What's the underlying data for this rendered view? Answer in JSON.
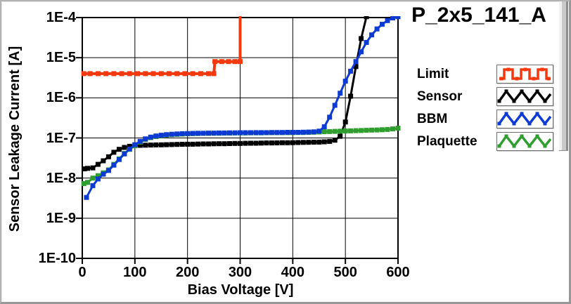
{
  "header": {
    "title": "P_2x5_141_A"
  },
  "chart": {
    "ylabel": "Sensor Leakage Current [A]",
    "xlabel": "Bias Voltage [V]",
    "y_tick_labels": [
      "1E-4",
      "1E-5",
      "1E-6",
      "1E-7",
      "1E-8",
      "1E-9",
      "1E-10"
    ],
    "x_tick_labels": [
      "0",
      "100",
      "200",
      "300",
      "400",
      "500",
      "600"
    ]
  },
  "legend": {
    "items": [
      {
        "label": "Limit",
        "color": "#f5380e",
        "wave": "square",
        "icon": "square-wave-icon"
      },
      {
        "label": "Sensor",
        "color": "#000000",
        "wave": "triangle",
        "icon": "triangle-wave-icon"
      },
      {
        "label": "BBM",
        "color": "#0c3ad2",
        "wave": "triangle",
        "icon": "triangle-wave-icon"
      },
      {
        "label": "Plaquette",
        "color": "#2f9e2f",
        "wave": "triangle",
        "icon": "triangle-wave-icon"
      }
    ]
  },
  "colors": {
    "grid": "#000000",
    "frame": "#000000",
    "plot_bg": "#ffffff",
    "panel_bg": "#ffffff",
    "border": "#989898"
  },
  "chart_data": {
    "type": "line",
    "title": "P_2x5_141_A",
    "xlabel": "Bias Voltage [V]",
    "ylabel": "Sensor Leakage Current [A]",
    "grid": true,
    "legend_position": "right",
    "x_axis": {
      "min": 0,
      "max": 600,
      "ticks": [
        0,
        100,
        200,
        300,
        400,
        500,
        600
      ]
    },
    "y_axis": {
      "scale": "log",
      "min": 1e-10,
      "max": 0.0001,
      "tick_values": [
        0.0001,
        1e-05,
        1e-06,
        1e-07,
        1e-08,
        1e-09,
        1e-10
      ]
    },
    "series": [
      {
        "name": "Sensor",
        "color": "#000000",
        "marker": "square",
        "x": [
          4,
          10,
          20,
          30,
          40,
          50,
          60,
          70,
          80,
          90,
          100,
          110,
          120,
          130,
          140,
          150,
          160,
          170,
          180,
          190,
          200,
          210,
          220,
          230,
          240,
          250,
          260,
          270,
          280,
          290,
          300,
          310,
          320,
          330,
          340,
          350,
          360,
          370,
          380,
          390,
          400,
          410,
          420,
          430,
          440,
          450,
          460,
          470,
          480,
          490,
          500,
          510,
          520,
          530,
          540
        ],
        "y": [
          1.7e-08,
          1.75e-08,
          1.8e-08,
          2.2e-08,
          2.7e-08,
          3.4e-08,
          4.4e-08,
          5.2e-08,
          5.8e-08,
          6.2e-08,
          6.5e-08,
          6.55e-08,
          6.6e-08,
          6.65e-08,
          6.7e-08,
          6.75e-08,
          6.8e-08,
          6.85e-08,
          6.9e-08,
          6.95e-08,
          7e-08,
          7e-08,
          7.05e-08,
          7.1e-08,
          7.1e-08,
          7.15e-08,
          7.2e-08,
          7.2e-08,
          7.25e-08,
          7.3e-08,
          7.3e-08,
          7.35e-08,
          7.4e-08,
          7.4e-08,
          7.45e-08,
          7.5e-08,
          7.5e-08,
          7.55e-08,
          7.6e-08,
          7.6e-08,
          7.65e-08,
          7.7e-08,
          7.75e-08,
          7.8e-08,
          7.85e-08,
          7.9e-08,
          8e-08,
          8.2e-08,
          8.8e-08,
          1.1e-07,
          2.5e-07,
          1.1e-06,
          6e-06,
          3e-05,
          0.000105
        ]
      },
      {
        "name": "Plaquette",
        "color": "#2f9e2f",
        "marker": "square",
        "x": [
          3,
          10,
          20,
          30,
          40,
          50,
          60,
          70,
          80,
          90,
          100,
          110,
          120,
          130,
          140,
          150,
          160,
          170,
          180,
          190,
          200,
          210,
          220,
          230,
          240,
          250,
          260,
          270,
          280,
          290,
          300,
          310,
          320,
          330,
          340,
          350,
          360,
          370,
          380,
          390,
          400,
          410,
          420,
          430,
          440,
          450,
          460,
          470,
          480,
          490,
          500,
          510,
          520,
          530,
          540,
          550,
          560,
          570,
          580,
          590,
          600
        ],
        "y": [
          7.3e-09,
          7.8e-09,
          1e-08,
          1.15e-08,
          1.35e-08,
          1.6e-08,
          2.2e-08,
          3e-08,
          4.1e-08,
          5.2e-08,
          6.4e-08,
          7.9e-08,
          9.2e-08,
          1.02e-07,
          1.09e-07,
          1.14e-07,
          1.18e-07,
          1.21e-07,
          1.23e-07,
          1.25e-07,
          1.27e-07,
          1.28e-07,
          1.29e-07,
          1.3e-07,
          1.3e-07,
          1.31e-07,
          1.31e-07,
          1.32e-07,
          1.32e-07,
          1.33e-07,
          1.33e-07,
          1.33e-07,
          1.34e-07,
          1.34e-07,
          1.34e-07,
          1.35e-07,
          1.35e-07,
          1.35e-07,
          1.36e-07,
          1.36e-07,
          1.36e-07,
          1.37e-07,
          1.37e-07,
          1.38e-07,
          1.39e-07,
          1.41e-07,
          1.43e-07,
          1.44e-07,
          1.46e-07,
          1.47e-07,
          1.49e-07,
          1.5e-07,
          1.52e-07,
          1.53e-07,
          1.55e-07,
          1.57e-07,
          1.58e-07,
          1.6e-07,
          1.63e-07,
          1.68e-07,
          1.75e-07
        ]
      },
      {
        "name": "BBM",
        "color": "#0c3ad2",
        "marker": "square",
        "x": [
          8,
          20,
          30,
          40,
          50,
          60,
          70,
          80,
          90,
          100,
          110,
          120,
          130,
          140,
          150,
          160,
          170,
          180,
          190,
          200,
          210,
          220,
          230,
          240,
          250,
          260,
          270,
          280,
          290,
          300,
          310,
          320,
          330,
          340,
          350,
          360,
          370,
          380,
          390,
          400,
          410,
          420,
          430,
          440,
          450,
          460,
          470,
          480,
          490,
          500,
          510,
          520,
          530,
          540,
          550,
          560,
          570,
          580,
          590,
          600
        ],
        "y": [
          3.3e-09,
          6.5e-09,
          9.5e-09,
          1.25e-08,
          1.55e-08,
          2.1e-08,
          2.9e-08,
          4e-08,
          5.3e-08,
          6.8e-08,
          8.2e-08,
          9.5e-08,
          1.05e-07,
          1.12e-07,
          1.17e-07,
          1.21e-07,
          1.24e-07,
          1.26e-07,
          1.28e-07,
          1.29e-07,
          1.3e-07,
          1.31e-07,
          1.31e-07,
          1.32e-07,
          1.32e-07,
          1.33e-07,
          1.33e-07,
          1.34e-07,
          1.34e-07,
          1.35e-07,
          1.35e-07,
          1.35e-07,
          1.36e-07,
          1.36e-07,
          1.36e-07,
          1.37e-07,
          1.37e-07,
          1.37e-07,
          1.38e-07,
          1.38e-07,
          1.38e-07,
          1.39e-07,
          1.4e-07,
          1.42e-07,
          1.48e-07,
          1.9e-07,
          3.3e-07,
          6.5e-07,
          1.3e-06,
          2.6e-06,
          4.6e-06,
          8e-06,
          1.4e-05,
          2.4e-05,
          3.7e-05,
          5.2e-05,
          6.8e-05,
          8.4e-05,
          9.8e-05,
          0.000105
        ]
      },
      {
        "name": "Limit",
        "color": "#f5380e",
        "marker": "square",
        "x": [
          3,
          15,
          30,
          45,
          60,
          75,
          90,
          105,
          120,
          135,
          150,
          165,
          180,
          195,
          210,
          225,
          240,
          250,
          252,
          265,
          278,
          290,
          300,
          300
        ],
        "y": [
          4e-06,
          4e-06,
          4e-06,
          4e-06,
          4e-06,
          4e-06,
          4e-06,
          4e-06,
          4e-06,
          4e-06,
          4e-06,
          4e-06,
          4e-06,
          4e-06,
          4e-06,
          4e-06,
          4e-06,
          4e-06,
          8e-06,
          8e-06,
          8e-06,
          8e-06,
          8e-06,
          0.000135
        ]
      }
    ]
  }
}
